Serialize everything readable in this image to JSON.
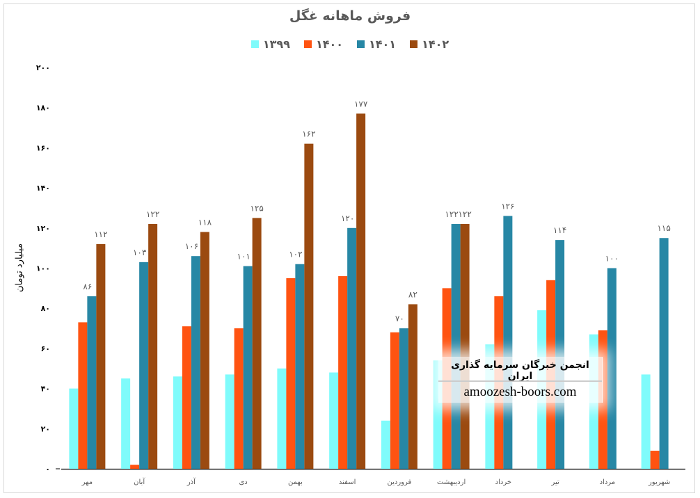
{
  "chart_data": {
    "type": "bar",
    "title": "فروش ماهانه غگل",
    "ylabel": "میلیارد تومان",
    "xlabel": "",
    "ylim": [
      0,
      200
    ],
    "yticks": [
      0,
      20,
      40,
      60,
      80,
      100,
      120,
      140,
      160,
      180,
      200
    ],
    "ytick_labels": [
      "۰",
      "۲۰",
      "۴۰",
      "۶۰",
      "۸۰",
      "۱۰۰",
      "۱۲۰",
      "۱۴۰",
      "۱۶۰",
      "۱۸۰",
      "۲۰۰"
    ],
    "grid": false,
    "legend_position": "top",
    "categories": [
      "مهر",
      "آبان",
      "آذر",
      "دی",
      "بهمن",
      "اسفند",
      "فروردین",
      "اردیبهشت",
      "خرداد",
      "تیر",
      "مرداد",
      "شهریور"
    ],
    "series": [
      {
        "name": "۱۳۹۹",
        "color": "#7FFBFB",
        "values": [
          40,
          45,
          46,
          47,
          50,
          48,
          24,
          54,
          62,
          79,
          67,
          47
        ],
        "labels": []
      },
      {
        "name": "۱۴۰۰",
        "color": "#FF5311",
        "values": [
          73,
          2,
          71,
          70,
          95,
          96,
          68,
          90,
          86,
          94,
          69,
          9
        ],
        "labels": []
      },
      {
        "name": "۱۴۰۱",
        "color": "#2787A5",
        "values": [
          86,
          103,
          106,
          101,
          102,
          120,
          70,
          122,
          126,
          114,
          100,
          115
        ],
        "labels": [
          "۸۶",
          "۱۰۳",
          "۱۰۶",
          "۱۰۱",
          "۱۰۲",
          "۱۲۰",
          "۷۰",
          "۱۲۲",
          "۱۲۶",
          "۱۱۴",
          "۱۰۰",
          "۱۱۵"
        ]
      },
      {
        "name": "۱۴۰۲",
        "color": "#9B4A10",
        "values": [
          112,
          122,
          118,
          125,
          162,
          177,
          82,
          122,
          null,
          null,
          null,
          null
        ],
        "labels": [
          "۱۱۲",
          "۱۲۲",
          "۱۱۸",
          "۱۲۵",
          "۱۶۲",
          "۱۷۷",
          "۸۲",
          "۱۲۲",
          "",
          "",
          "",
          ""
        ]
      }
    ]
  },
  "watermark": {
    "line1": "انجمن خبرگان سرمایه گذاری ایران",
    "line2": "amoozesh-boors.com"
  }
}
